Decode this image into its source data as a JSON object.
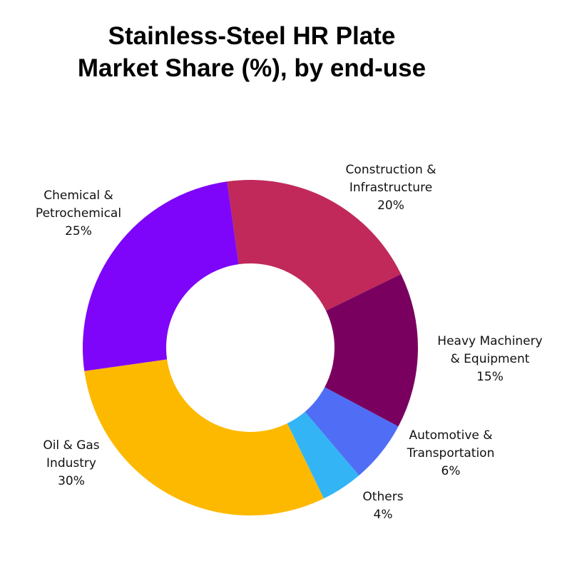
{
  "chart_data": {
    "type": "donut",
    "title": "Stainless-Steel HR Plate\nMarket Share (%), by end-use",
    "categories": [
      "Construction &\nInfrastructure",
      "Heavy Machinery\n& Equipment",
      "Automotive &\nTransportation",
      "Others",
      "Oil & Gas\nIndustry",
      "Chemical &\nPetrochemical"
    ],
    "values": [
      20,
      15,
      6,
      4,
      30,
      25
    ],
    "value_labels": [
      "20%",
      "15%",
      "6%",
      "4%",
      "30%",
      "25%"
    ],
    "colors": [
      "#c0295a",
      "#7a0060",
      "#4f6ef5",
      "#33b5f5",
      "#fdb900",
      "#7e05fa"
    ]
  }
}
